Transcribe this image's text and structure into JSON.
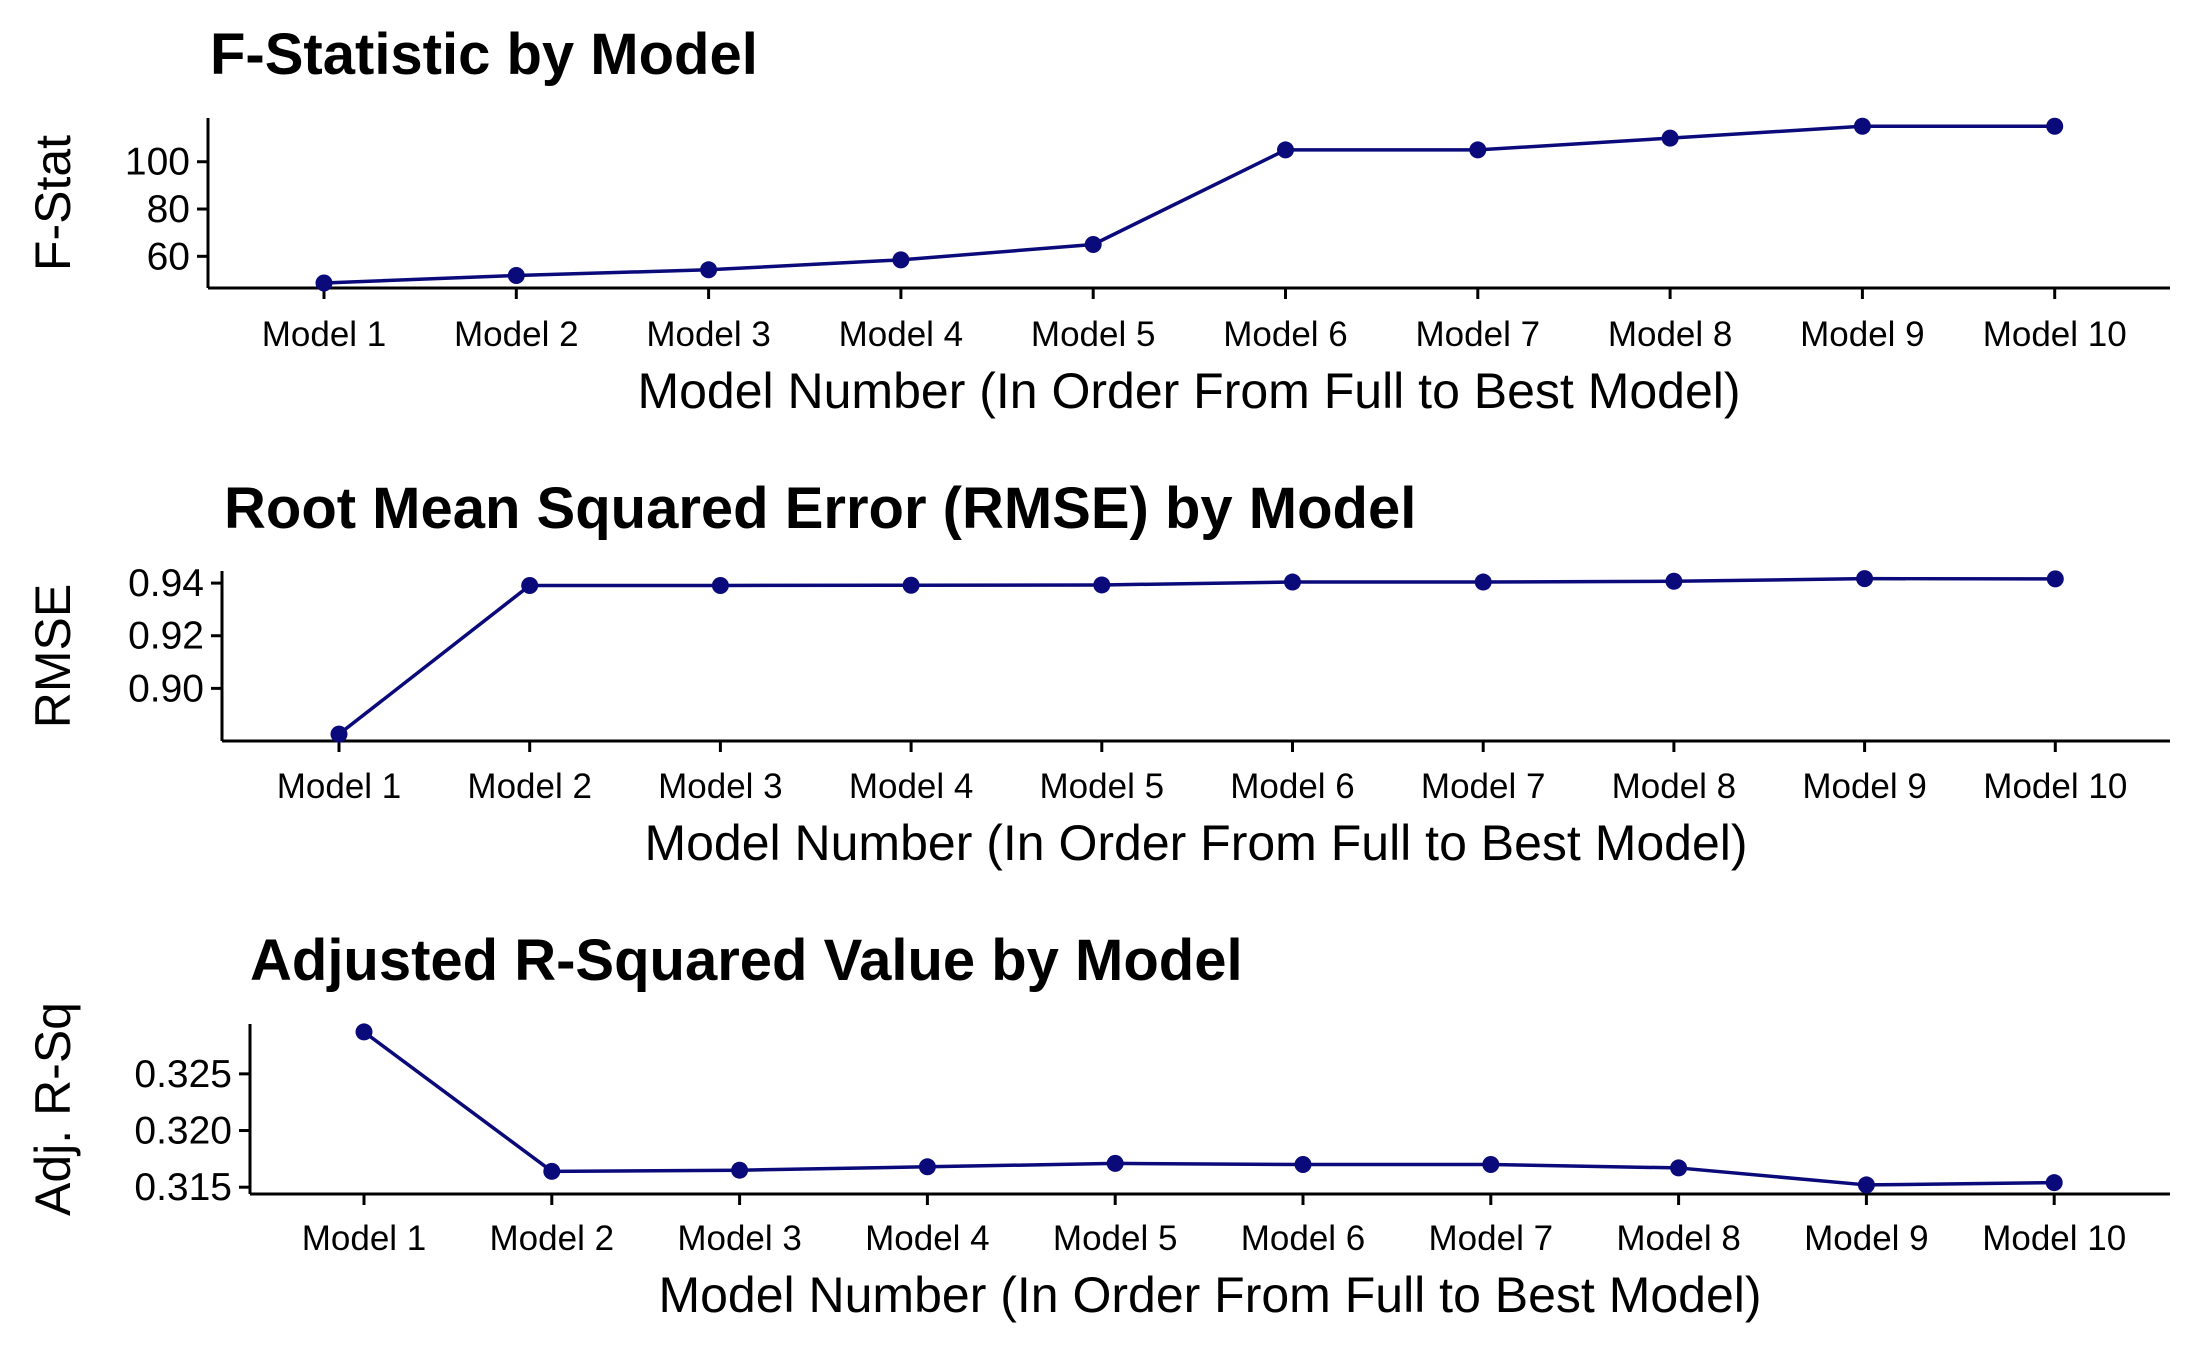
{
  "chart_data": [
    {
      "type": "line",
      "title": "F-Statistic by Model",
      "xlabel": "Model Number (In Order From Full to Best Model)",
      "ylabel": "F-Stat",
      "categories": [
        "Model 1",
        "Model 2",
        "Model 3",
        "Model 4",
        "Model 5",
        "Model 6",
        "Model 7",
        "Model 8",
        "Model 9",
        "Model 10"
      ],
      "values": [
        48.7,
        51.9,
        54.3,
        58.5,
        65.0,
        105.0,
        105.0,
        110.0,
        115.0,
        115.0
      ],
      "yticks": [
        60,
        80,
        100
      ],
      "ytick_labels": [
        "60",
        "80",
        "100"
      ],
      "ylim": [
        46.6,
        118.5
      ],
      "color": "#0a0a7a",
      "grid": false,
      "legend": "none"
    },
    {
      "type": "line",
      "title": "Root Mean Squared Error (RMSE) by Model",
      "xlabel": "Model Number (In Order From Full to Best Model)",
      "ylabel": "RMSE",
      "categories": [
        "Model 1",
        "Model 2",
        "Model 3",
        "Model 4",
        "Model 5",
        "Model 6",
        "Model 7",
        "Model 8",
        "Model 9",
        "Model 10"
      ],
      "values": [
        0.8826,
        0.9391,
        0.9391,
        0.9392,
        0.9393,
        0.9404,
        0.9404,
        0.9407,
        0.9417,
        0.9416
      ],
      "yticks": [
        0.9,
        0.92,
        0.94
      ],
      "ytick_labels": [
        "0.90",
        "0.92",
        "0.94"
      ],
      "ylim": [
        0.88,
        0.9446
      ],
      "color": "#0a0a7a",
      "grid": false,
      "legend": "none"
    },
    {
      "type": "line",
      "title": "Adjusted R-Squared Value by Model",
      "xlabel": "Model Number (In Order From Full to Best Model)",
      "ylabel": "Adj. R-Sq",
      "categories": [
        "Model 1",
        "Model 2",
        "Model 3",
        "Model 4",
        "Model 5",
        "Model 6",
        "Model 7",
        "Model 8",
        "Model 9",
        "Model 10"
      ],
      "values": [
        0.3287,
        0.3164,
        0.3165,
        0.3168,
        0.3171,
        0.317,
        0.317,
        0.3167,
        0.3152,
        0.3154
      ],
      "yticks": [
        0.315,
        0.32,
        0.325
      ],
      "ytick_labels": [
        "0.315",
        "0.320",
        "0.325"
      ],
      "ylim": [
        0.3144,
        0.3294
      ],
      "color": "#0a0a7a",
      "grid": false,
      "legend": "none"
    }
  ]
}
